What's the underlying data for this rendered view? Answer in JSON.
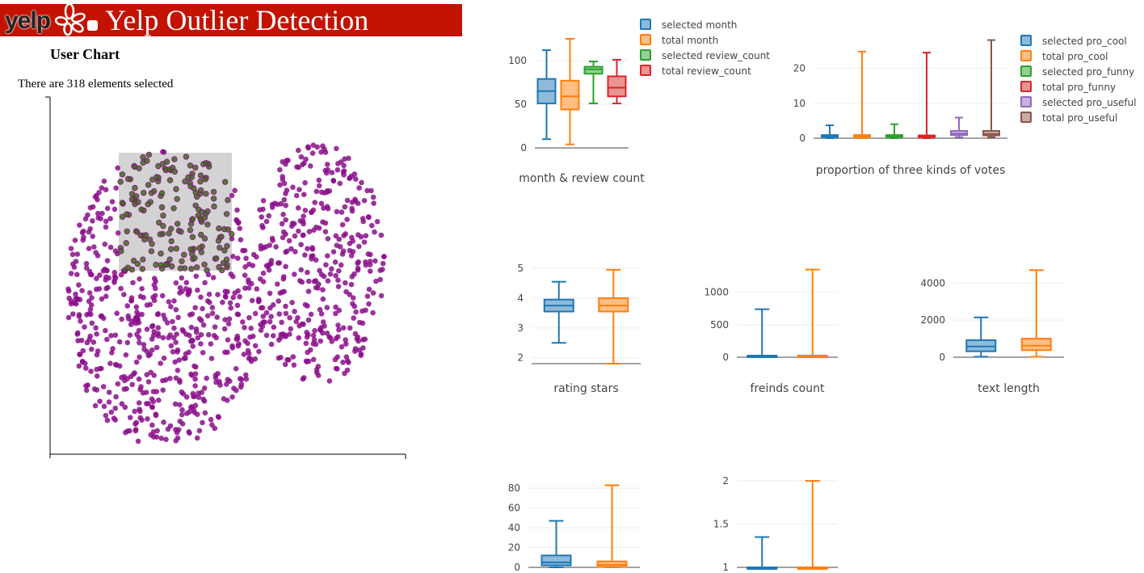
{
  "header": {
    "logo_text": "yelp",
    "title": "Yelp Outlier Detection",
    "bg_color": "#c41200"
  },
  "user_chart": {
    "title": "User Chart",
    "selection_text": "There are 318 elements selected",
    "point_color": "#8b0f8b",
    "selected_point_color": "#3f6a17",
    "brush_color": "#d3d3d3"
  },
  "colors": {
    "blue": "#1f77b4",
    "orange": "#ff7f0e",
    "green": "#2ca02c",
    "red": "#d62728",
    "purple": "#9467bd",
    "brown": "#8c564b"
  },
  "chart_data": [
    {
      "type": "box",
      "title": "month & review count",
      "yticks": [
        0,
        50,
        100
      ],
      "ylim": [
        0,
        125
      ],
      "series": [
        {
          "name": "selected month",
          "color": "blue",
          "min": 10,
          "q1": 51,
          "median": 65,
          "q3": 79,
          "max": 112
        },
        {
          "name": "total month",
          "color": "orange",
          "min": 4,
          "q1": 44,
          "median": 59,
          "q3": 77,
          "max": 125
        },
        {
          "name": "selected review_count",
          "color": "green",
          "min": 51,
          "q1": 85,
          "median": 90,
          "q3": 93,
          "max": 99
        },
        {
          "name": "total review_count",
          "color": "red",
          "min": 51,
          "q1": 59,
          "median": 69,
          "q3": 82,
          "max": 101
        }
      ]
    },
    {
      "type": "box",
      "title": "proportion of three kinds of votes",
      "yticks": [
        0,
        10,
        20
      ],
      "ylim": [
        0,
        28
      ],
      "series": [
        {
          "name": "selected pro_cool",
          "color": "blue",
          "min": 0,
          "q1": 0.2,
          "median": 0.5,
          "q3": 0.9,
          "max": 3.7
        },
        {
          "name": "total pro_cool",
          "color": "orange",
          "min": 0,
          "q1": 0.2,
          "median": 0.5,
          "q3": 0.9,
          "max": 24.8
        },
        {
          "name": "selected pro_funny",
          "color": "green",
          "min": 0,
          "q1": 0.2,
          "median": 0.5,
          "q3": 0.9,
          "max": 4
        },
        {
          "name": "total pro_funny",
          "color": "red",
          "min": 0,
          "q1": 0.1,
          "median": 0.4,
          "q3": 0.8,
          "max": 24.5
        },
        {
          "name": "selected pro_useful",
          "color": "purple",
          "min": 0.3,
          "q1": 0.9,
          "median": 1.3,
          "q3": 2.1,
          "max": 5.9
        },
        {
          "name": "total pro_useful",
          "color": "brown",
          "min": 0.3,
          "q1": 0.8,
          "median": 1.2,
          "q3": 2.1,
          "max": 28.1
        }
      ]
    },
    {
      "type": "box",
      "title": "rating stars",
      "yticks": [
        2,
        3,
        4,
        5
      ],
      "ylim": [
        1.8,
        5.0
      ],
      "series": [
        {
          "color": "blue",
          "min": 2.5,
          "q1": 3.55,
          "median": 3.75,
          "q3": 3.95,
          "max": 4.55
        },
        {
          "color": "orange",
          "min": 1.8,
          "q1": 3.55,
          "median": 3.75,
          "q3": 4.0,
          "max": 4.95
        }
      ]
    },
    {
      "type": "box",
      "title": "freinds count",
      "yticks": [
        0,
        500,
        1000
      ],
      "ylim": [
        0,
        1370
      ],
      "series": [
        {
          "color": "blue",
          "min": 0,
          "q1": 5,
          "median": 12,
          "q3": 25,
          "max": 740
        },
        {
          "color": "orange",
          "min": 0,
          "q1": 5,
          "median": 12,
          "q3": 25,
          "max": 1350
        }
      ]
    },
    {
      "type": "box",
      "title": "text length",
      "yticks": [
        0,
        2000,
        4000
      ],
      "ylim": [
        0,
        4800
      ],
      "series": [
        {
          "color": "blue",
          "min": 30,
          "q1": 320,
          "median": 580,
          "q3": 920,
          "max": 2150
        },
        {
          "color": "orange",
          "min": 20,
          "q1": 380,
          "median": 620,
          "q3": 1000,
          "max": 4700
        }
      ]
    },
    {
      "type": "box",
      "title": "",
      "yticks": [
        0,
        20,
        40,
        60,
        80
      ],
      "ylim": [
        0,
        85
      ],
      "series": [
        {
          "color": "blue",
          "min": 0,
          "q1": 2,
          "median": 5,
          "q3": 12,
          "max": 47
        },
        {
          "color": "orange",
          "min": 0,
          "q1": 0.5,
          "median": 2.5,
          "q3": 6,
          "max": 83
        }
      ]
    },
    {
      "type": "box",
      "title": "",
      "yticks": [
        1,
        1.5,
        2
      ],
      "ylim": [
        1,
        2.0
      ],
      "series": [
        {
          "color": "blue",
          "min": 1,
          "q1": 1,
          "median": 1,
          "q3": 1,
          "max": 1.35
        },
        {
          "color": "orange",
          "min": 1,
          "q1": 1,
          "median": 1,
          "q3": 1,
          "max": 2
        }
      ]
    }
  ]
}
